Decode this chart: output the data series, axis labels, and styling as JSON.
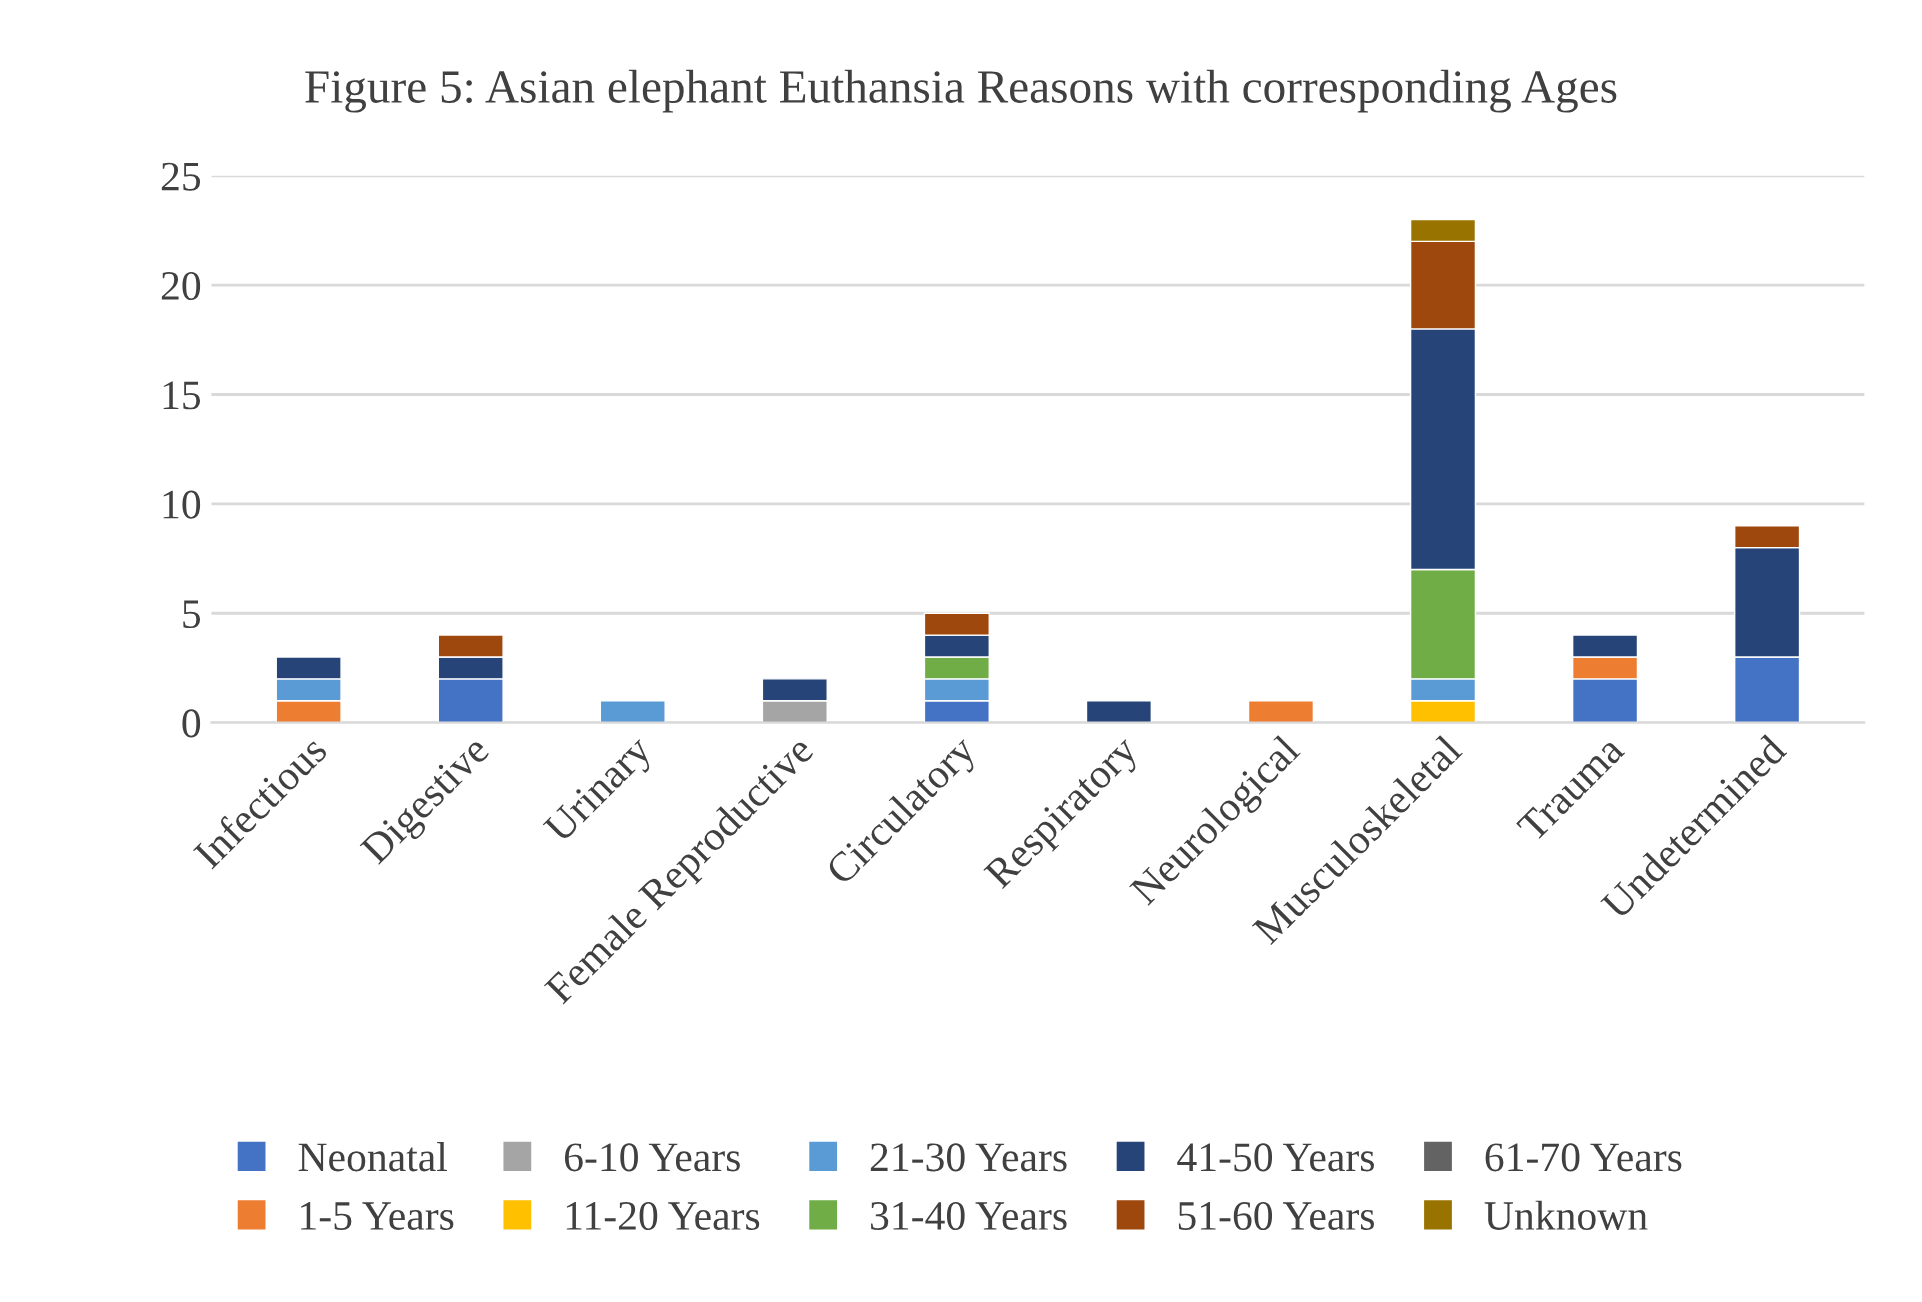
{
  "chart_data": {
    "type": "bar",
    "stacked": true,
    "title": "Figure 5: Asian elephant Euthansia Reasons with corresponding Ages",
    "categories": [
      "Infectious",
      "Digestive",
      "Urinary",
      "Female Reproductive",
      "Circulatory",
      "Respiratory",
      "Neurological",
      "Musculoskeletal",
      "Trauma",
      "Undetermined"
    ],
    "series": [
      {
        "name": "Neonatal",
        "color": "#4472c4",
        "values": [
          null,
          2,
          null,
          null,
          1,
          null,
          null,
          null,
          2,
          3
        ]
      },
      {
        "name": "1-5 Years",
        "color": "#ed7d31",
        "values": [
          1,
          null,
          null,
          null,
          null,
          null,
          1,
          null,
          1,
          null
        ]
      },
      {
        "name": "6-10 Years",
        "color": "#a5a5a5",
        "values": [
          null,
          null,
          null,
          1,
          null,
          null,
          null,
          null,
          null,
          null
        ]
      },
      {
        "name": "11-20 Years",
        "color": "#ffc000",
        "values": [
          null,
          null,
          null,
          null,
          null,
          null,
          null,
          1,
          null,
          null
        ]
      },
      {
        "name": "21-30 Years",
        "color": "#5b9bd5",
        "values": [
          1,
          null,
          1,
          null,
          1,
          null,
          null,
          1,
          null,
          null
        ]
      },
      {
        "name": "31-40 Years",
        "color": "#70ad47",
        "values": [
          null,
          null,
          null,
          null,
          1,
          null,
          null,
          5,
          null,
          null
        ]
      },
      {
        "name": "41-50 Years",
        "color": "#264478",
        "values": [
          1,
          1,
          null,
          1,
          1,
          1,
          null,
          11,
          1,
          5
        ]
      },
      {
        "name": "51-60 Years",
        "color": "#9e480e",
        "values": [
          null,
          1,
          null,
          null,
          1,
          null,
          null,
          4,
          null,
          1
        ]
      },
      {
        "name": "61-70 Years",
        "color": "#636363",
        "values": [
          null,
          null,
          null,
          null,
          null,
          null,
          null,
          null,
          null,
          null
        ]
      },
      {
        "name": "Unknown",
        "color": "#997300",
        "values": [
          null,
          null,
          null,
          null,
          null,
          null,
          null,
          1,
          null,
          null
        ]
      }
    ],
    "ylim": [
      0,
      25
    ],
    "yticks": [
      0,
      5,
      10,
      15,
      20,
      25
    ],
    "grid": "y",
    "legend": "bottom"
  }
}
